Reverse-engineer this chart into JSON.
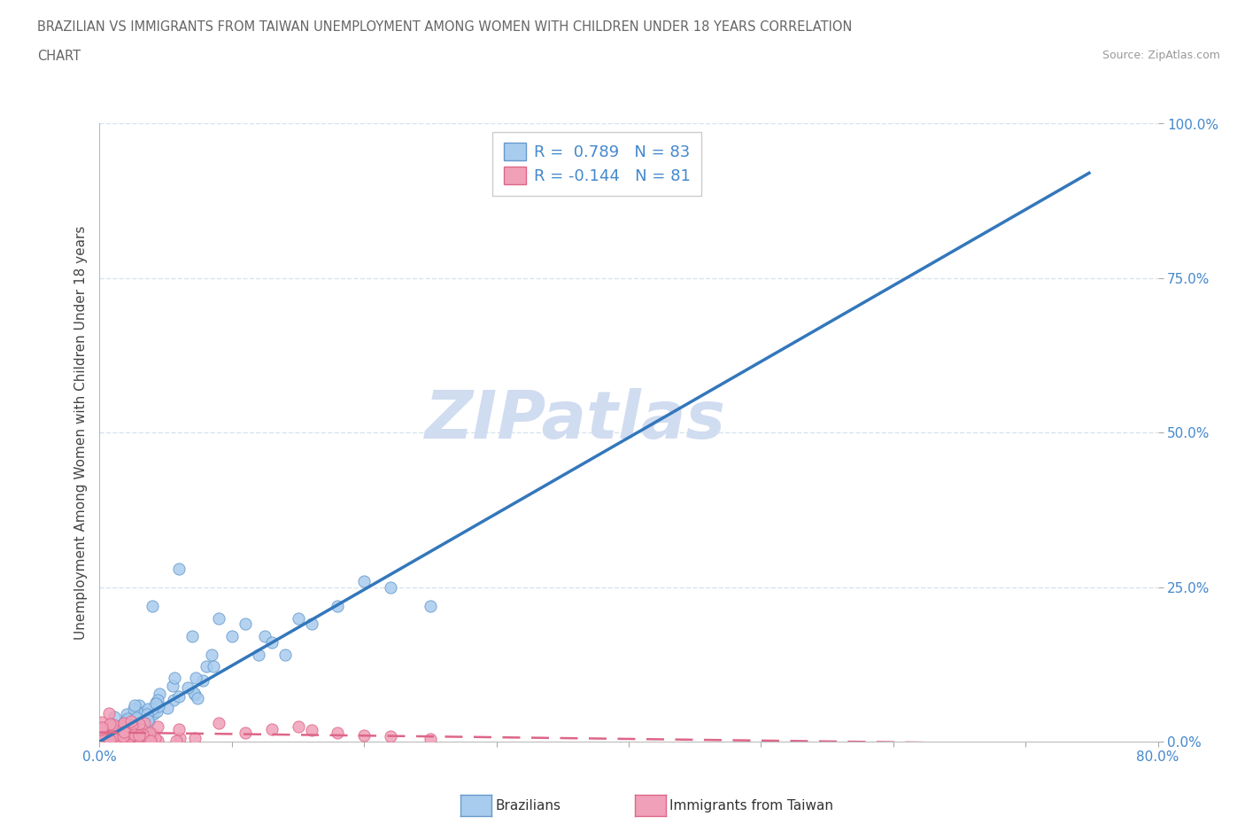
{
  "title_line1": "BRAZILIAN VS IMMIGRANTS FROM TAIWAN UNEMPLOYMENT AMONG WOMEN WITH CHILDREN UNDER 18 YEARS CORRELATION",
  "title_line2": "CHART",
  "source": "Source: ZipAtlas.com",
  "ylabel": "Unemployment Among Women with Children Under 18 years",
  "xlim": [
    0.0,
    0.8
  ],
  "ylim": [
    0.0,
    1.0
  ],
  "legend_r1": "R =  0.789   N = 83",
  "legend_r2": "R = -0.144   N = 81",
  "blue_scatter_color": "#A8CCEE",
  "blue_edge_color": "#6699CC",
  "pink_scatter_color": "#F0A0B8",
  "pink_edge_color": "#DD6688",
  "blue_line_color": "#3377BB",
  "pink_line_color": "#DD6688",
  "watermark_color": "#D0DCF0",
  "axis_color": "#4488CC",
  "grid_color": "#D8E4EE",
  "title_color": "#666666",
  "source_color": "#999999",
  "brazil_line_x0": 0.0,
  "brazil_line_y0": 0.0,
  "brazil_line_x1": 0.748,
  "brazil_line_y1": 0.92,
  "taiwan_line_x0": 0.0,
  "taiwan_line_y0": 0.015,
  "taiwan_line_x1": 0.75,
  "taiwan_line_y1": -0.005
}
